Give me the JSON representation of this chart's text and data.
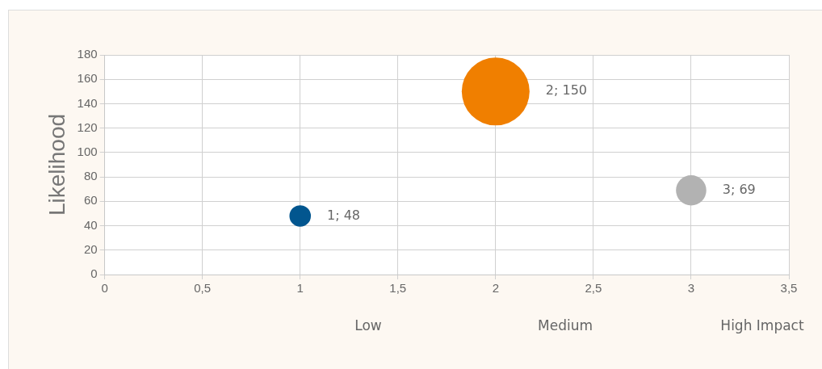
{
  "chart_data": {
    "type": "bubble",
    "ylabel": "Likelihood",
    "annotations": [
      "Low",
      "Medium",
      "High Impact"
    ],
    "x": [
      1,
      2,
      3
    ],
    "series": [
      {
        "colors": [
          "#02568f",
          "#f07f00",
          "#b2b2b2"
        ],
        "values": [
          48,
          150,
          69
        ],
        "sizes": [
          0.1,
          1,
          0.2
        ],
        "value_labels": [
          "1; 48",
          "2; 150",
          "3; 69"
        ]
      }
    ],
    "xlim": [
      0,
      3.5
    ],
    "xticks": [
      0,
      {
        "value": 0.5,
        "label": "0,5"
      },
      1,
      {
        "value": 1.5,
        "label": "1,5"
      },
      2,
      {
        "value": 2.5,
        "label": "2,5"
      },
      3,
      {
        "value": 3.5,
        "label": "3,5"
      }
    ],
    "ylim": [
      0,
      180
    ],
    "yticks": [
      0,
      20,
      40,
      60,
      80,
      100,
      120,
      140,
      160,
      180
    ],
    "grid": true,
    "legend": false
  }
}
